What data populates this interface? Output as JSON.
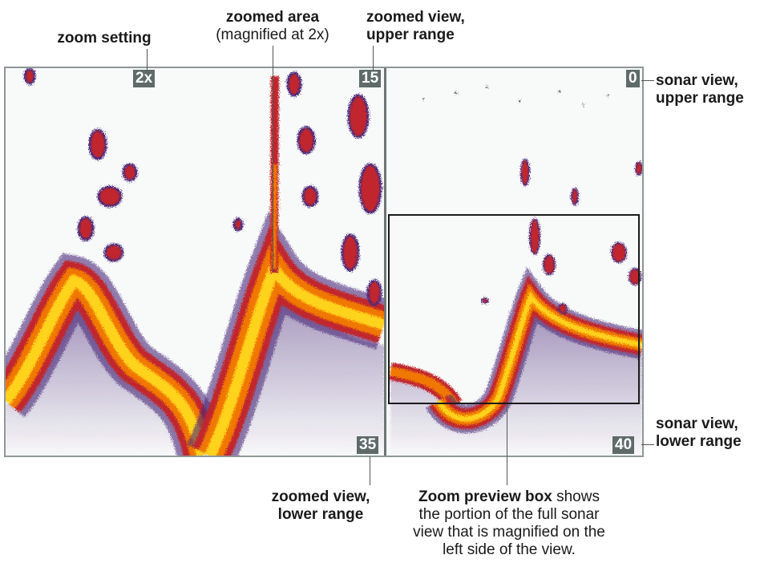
{
  "annotations": {
    "zoom_setting": "zoom setting",
    "zoomed_area": "zoomed area",
    "zoomed_area_note": "(magnified at 2x)",
    "zoomed_upper_1": "zoomed view,",
    "zoomed_upper_2": "upper range",
    "sonar_upper_1": "sonar view,",
    "sonar_upper_2": "upper range",
    "sonar_lower_1": "sonar view,",
    "sonar_lower_2": "lower range",
    "zoomed_lower_1": "zoomed view,",
    "zoomed_lower_2": "lower range",
    "preview_bold": "Zoom preview box",
    "preview_line1_rest": " shows",
    "preview_line2": "the portion of the full sonar",
    "preview_line3": "view that is magnified on the",
    "preview_line4": "left side of the view."
  },
  "labels": {
    "zoom_level": "2x",
    "zoom_upper": "15",
    "zoom_lower": "35",
    "sonar_upper": "0",
    "sonar_lower": "40"
  },
  "colors": {
    "tag_bg": "#5e6b68",
    "echo_core": "#ffd21a",
    "echo_mid": "#f07800",
    "echo_outer": "#c1272d",
    "echo_fringe": "#4a2a7a"
  }
}
